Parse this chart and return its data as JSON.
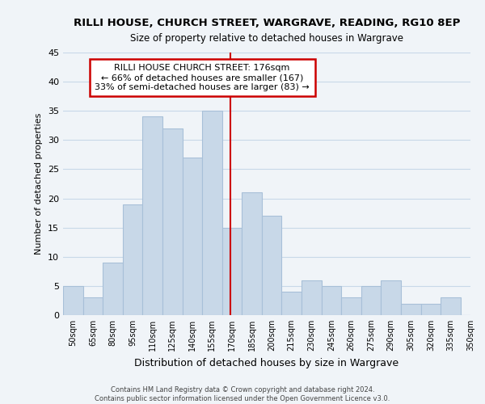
{
  "title": "RILLI HOUSE, CHURCH STREET, WARGRAVE, READING, RG10 8EP",
  "subtitle": "Size of property relative to detached houses in Wargrave",
  "xlabel": "Distribution of detached houses by size in Wargrave",
  "ylabel": "Number of detached properties",
  "bin_labels": [
    "50sqm",
    "65sqm",
    "80sqm",
    "95sqm",
    "110sqm",
    "125sqm",
    "140sqm",
    "155sqm",
    "170sqm",
    "185sqm",
    "200sqm",
    "215sqm",
    "230sqm",
    "245sqm",
    "260sqm",
    "275sqm",
    "290sqm",
    "305sqm",
    "320sqm",
    "335sqm",
    "350sqm"
  ],
  "bin_edges": [
    50,
    65,
    80,
    95,
    110,
    125,
    140,
    155,
    170,
    185,
    200,
    215,
    230,
    245,
    260,
    275,
    290,
    305,
    320,
    335,
    350
  ],
  "bar_heights": [
    5,
    3,
    9,
    19,
    34,
    32,
    27,
    35,
    15,
    21,
    17,
    4,
    6,
    5,
    3,
    5,
    6,
    2,
    2,
    3,
    0
  ],
  "bar_color": "#c8d8e8",
  "bar_edge_color": "#a8c0d8",
  "vline_x": 176,
  "vline_color": "#cc0000",
  "ylim": [
    0,
    45
  ],
  "yticks": [
    0,
    5,
    10,
    15,
    20,
    25,
    30,
    35,
    40,
    45
  ],
  "annotation_title": "RILLI HOUSE CHURCH STREET: 176sqm",
  "annotation_line1": "← 66% of detached houses are smaller (167)",
  "annotation_line2": "33% of semi-detached houses are larger (83) →",
  "annotation_box_color": "#ffffff",
  "annotation_box_edge": "#cc0000",
  "footer_line1": "Contains HM Land Registry data © Crown copyright and database right 2024.",
  "footer_line2": "Contains public sector information licensed under the Open Government Licence v3.0.",
  "grid_color": "#c8d8e8",
  "background_color": "#f0f4f8"
}
